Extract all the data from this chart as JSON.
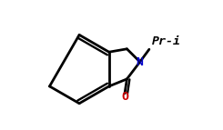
{
  "bg_color": "#ffffff",
  "bond_color": "#000000",
  "bond_width": 2.0,
  "N_color": "#0000cd",
  "O_color": "#cc0000",
  "label_N": "N",
  "label_O": "O",
  "label_Pr": "Pr-i",
  "font_family": "monospace",
  "pri_fontsize": 9.5,
  "label_fontsize": 9.5,
  "xlim": [
    0.0,
    8.5
  ],
  "ylim": [
    0.3,
    6.5
  ]
}
